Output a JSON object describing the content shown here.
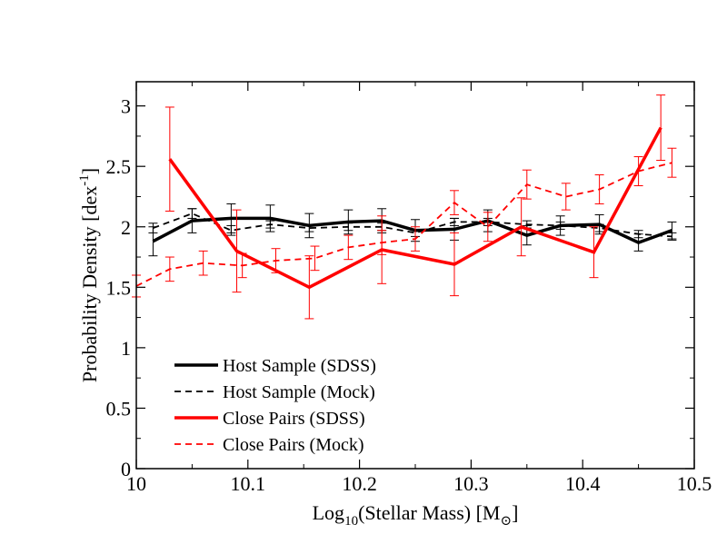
{
  "chart_data": {
    "type": "line",
    "xlabel_parts": [
      "Log",
      "10",
      "(Stellar Mass) [M",
      "⊙",
      "]"
    ],
    "ylabel_parts": [
      "Probability Density [dex",
      "-1",
      "]"
    ],
    "xlim": [
      10,
      10.5
    ],
    "ylim": [
      0,
      3.2
    ],
    "xticks": [
      10,
      10.1,
      10.2,
      10.3,
      10.4,
      10.5
    ],
    "xtick_labels": [
      "10",
      "10.1",
      "10.2",
      "10.3",
      "10.4",
      "10.5"
    ],
    "yticks": [
      0,
      0.5,
      1,
      1.5,
      2,
      2.5,
      3
    ],
    "ytick_labels": [
      "0",
      "0.5",
      "1",
      "1.5",
      "2",
      "2.5",
      "3"
    ],
    "legend_position": "bottom-left",
    "series": [
      {
        "name": "Host Sample (SDSS)",
        "color": "#000000",
        "style": "solid",
        "width": 3.5,
        "x": [
          10.015,
          10.05,
          10.085,
          10.12,
          10.155,
          10.19,
          10.22,
          10.25,
          10.285,
          10.315,
          10.35,
          10.38,
          10.415,
          10.45,
          10.48
        ],
        "y": [
          1.88,
          2.05,
          2.07,
          2.07,
          2.01,
          2.04,
          2.05,
          1.97,
          1.98,
          2.05,
          1.93,
          2.01,
          2.02,
          1.87,
          1.97
        ],
        "err": [
          0.12,
          0.1,
          0.12,
          0.11,
          0.1,
          0.1,
          0.1,
          0.09,
          0.09,
          0.09,
          0.08,
          0.08,
          0.08,
          0.07,
          0.07
        ]
      },
      {
        "name": "Host Sample (Mock)",
        "color": "#000000",
        "style": "dashed",
        "width": 1.8,
        "x": [
          10.015,
          10.05,
          10.085,
          10.12,
          10.155,
          10.19,
          10.22,
          10.25,
          10.285,
          10.315,
          10.35,
          10.38,
          10.415,
          10.45,
          10.48
        ],
        "y": [
          1.99,
          2.11,
          1.97,
          2.02,
          1.99,
          2.0,
          2.0,
          1.95,
          2.04,
          2.04,
          2.02,
          2.01,
          1.99,
          1.94,
          1.92
        ],
        "err": [
          0.04,
          0.04,
          0.04,
          0.03,
          0.03,
          0.03,
          0.03,
          0.03,
          0.03,
          0.03,
          0.03,
          0.03,
          0.03,
          0.03,
          0.03
        ]
      },
      {
        "name": "Close Pairs (SDSS)",
        "color": "#ff0000",
        "style": "solid",
        "width": 3.5,
        "x": [
          10.03,
          10.09,
          10.155,
          10.22,
          10.285,
          10.345,
          10.41,
          10.47
        ],
        "y": [
          2.56,
          1.8,
          1.5,
          1.81,
          1.69,
          2.0,
          1.79,
          2.82
        ],
        "err": [
          0.43,
          0.34,
          0.26,
          0.28,
          0.26,
          0.24,
          0.21,
          0.27
        ]
      },
      {
        "name": "Close Pairs (Mock)",
        "color": "#ff0000",
        "style": "dashed",
        "width": 1.8,
        "x": [
          10.0,
          10.03,
          10.06,
          10.095,
          10.125,
          10.16,
          10.19,
          10.22,
          10.25,
          10.285,
          10.315,
          10.35,
          10.385,
          10.415,
          10.45,
          10.48
        ],
        "y": [
          1.51,
          1.65,
          1.7,
          1.68,
          1.72,
          1.74,
          1.83,
          1.87,
          1.9,
          2.2,
          2.0,
          2.35,
          2.25,
          2.31,
          2.46,
          2.53
        ],
        "err": [
          0.09,
          0.1,
          0.1,
          0.1,
          0.1,
          0.1,
          0.1,
          0.1,
          0.1,
          0.1,
          0.12,
          0.12,
          0.11,
          0.12,
          0.12,
          0.12
        ]
      }
    ]
  }
}
